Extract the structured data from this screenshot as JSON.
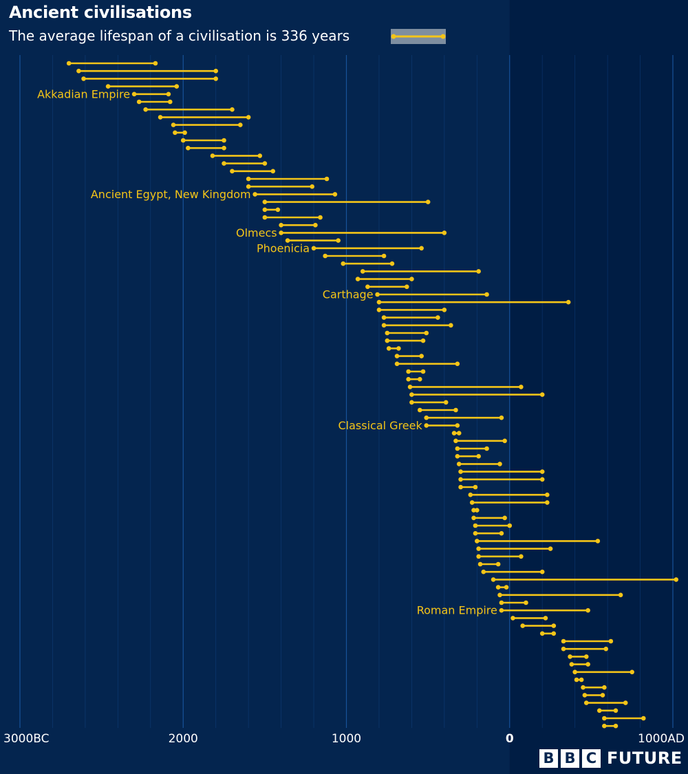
{
  "header": {
    "title": "Ancient civilisations",
    "subtitle": "The average lifespan of a civilisation is 336 years"
  },
  "logo": {
    "letters": [
      "B",
      "B",
      "C"
    ],
    "word": "FUTURE"
  },
  "colors": {
    "background": "#04254f",
    "shaded_region": "#001d44",
    "line": "#f5c518",
    "grid": "#1b5aa6",
    "label": "#f5c518",
    "tick": "#ffffff",
    "legend_swatch": "#7e8ea0"
  },
  "chart_data": {
    "type": "dumbbell",
    "title": "Ancient civilisations",
    "subtitle": "The average lifespan of a civilisation is 336 years",
    "x_axis": {
      "min": -3000,
      "max": 1000,
      "ticks": [
        {
          "value": -3000,
          "label": "3000BC"
        },
        {
          "value": -2000,
          "label": "2000"
        },
        {
          "value": -1000,
          "label": "1000"
        },
        {
          "value": 0,
          "label": "0"
        },
        {
          "value": 1000,
          "label": "1000AD"
        }
      ],
      "minor_gridlines_every": 200
    },
    "shaded_region": [
      0,
      1000
    ],
    "legend": {
      "placement": "top",
      "average_lifespan": 336
    },
    "civilisations": [
      {
        "start": -2700,
        "end": -2170
      },
      {
        "start": -2640,
        "end": -1800
      },
      {
        "start": -2610,
        "end": -1800
      },
      {
        "start": -2460,
        "end": -2040
      },
      {
        "start": -2300,
        "end": -2090,
        "name": "Akkadian Empire"
      },
      {
        "start": -2270,
        "end": -2080
      },
      {
        "start": -2230,
        "end": -1700
      },
      {
        "start": -2140,
        "end": -1600
      },
      {
        "start": -2060,
        "end": -1650
      },
      {
        "start": -2050,
        "end": -1990
      },
      {
        "start": -2000,
        "end": -1750
      },
      {
        "start": -1970,
        "end": -1750
      },
      {
        "start": -1820,
        "end": -1530
      },
      {
        "start": -1750,
        "end": -1500
      },
      {
        "start": -1700,
        "end": -1450
      },
      {
        "start": -1600,
        "end": -1120
      },
      {
        "start": -1600,
        "end": -1210
      },
      {
        "start": -1560,
        "end": -1070,
        "name": "Ancient Egypt, New Kingdom"
      },
      {
        "start": -1500,
        "end": -500
      },
      {
        "start": -1500,
        "end": -1420
      },
      {
        "start": -1500,
        "end": -1160
      },
      {
        "start": -1400,
        "end": -1190
      },
      {
        "start": -1400,
        "end": -400,
        "name": "Olmecs"
      },
      {
        "start": -1360,
        "end": -1050
      },
      {
        "start": -1200,
        "end": -540,
        "name": "Phoenicia"
      },
      {
        "start": -1130,
        "end": -770
      },
      {
        "start": -1020,
        "end": -720
      },
      {
        "start": -900,
        "end": -190
      },
      {
        "start": -930,
        "end": -600
      },
      {
        "start": -870,
        "end": -630
      },
      {
        "start": -810,
        "end": -140,
        "name": "Carthage"
      },
      {
        "start": -800,
        "end": 360
      },
      {
        "start": -800,
        "end": -400
      },
      {
        "start": -770,
        "end": -440
      },
      {
        "start": -770,
        "end": -360
      },
      {
        "start": -750,
        "end": -510
      },
      {
        "start": -750,
        "end": -530
      },
      {
        "start": -740,
        "end": -680
      },
      {
        "start": -690,
        "end": -540
      },
      {
        "start": -690,
        "end": -320
      },
      {
        "start": -620,
        "end": -530
      },
      {
        "start": -620,
        "end": -550
      },
      {
        "start": -610,
        "end": 70
      },
      {
        "start": -600,
        "end": 200
      },
      {
        "start": -600,
        "end": -390
      },
      {
        "start": -550,
        "end": -330
      },
      {
        "start": -510,
        "end": -50
      },
      {
        "start": -510,
        "end": -320,
        "name": "Classical Greek"
      },
      {
        "start": -340,
        "end": -310
      },
      {
        "start": -330,
        "end": -30
      },
      {
        "start": -320,
        "end": -140
      },
      {
        "start": -320,
        "end": -190
      },
      {
        "start": -310,
        "end": -60
      },
      {
        "start": -300,
        "end": 200
      },
      {
        "start": -300,
        "end": 200
      },
      {
        "start": -300,
        "end": -210
      },
      {
        "start": -240,
        "end": 230
      },
      {
        "start": -230,
        "end": 230
      },
      {
        "start": -220,
        "end": -200
      },
      {
        "start": -220,
        "end": -30
      },
      {
        "start": -210,
        "end": 0
      },
      {
        "start": -210,
        "end": -50
      },
      {
        "start": -200,
        "end": 540
      },
      {
        "start": -190,
        "end": 250
      },
      {
        "start": -190,
        "end": 70
      },
      {
        "start": -180,
        "end": -70
      },
      {
        "start": -160,
        "end": 200
      },
      {
        "start": -100,
        "end": 1020
      },
      {
        "start": -70,
        "end": -20
      },
      {
        "start": -60,
        "end": 680
      },
      {
        "start": -50,
        "end": 100
      },
      {
        "start": -50,
        "end": 480,
        "name": "Roman Empire"
      },
      {
        "start": 20,
        "end": 220
      },
      {
        "start": 80,
        "end": 270
      },
      {
        "start": 200,
        "end": 270
      },
      {
        "start": 330,
        "end": 620
      },
      {
        "start": 330,
        "end": 590
      },
      {
        "start": 370,
        "end": 470
      },
      {
        "start": 380,
        "end": 480
      },
      {
        "start": 400,
        "end": 750
      },
      {
        "start": 410,
        "end": 440
      },
      {
        "start": 450,
        "end": 580
      },
      {
        "start": 460,
        "end": 570
      },
      {
        "start": 470,
        "end": 710
      },
      {
        "start": 550,
        "end": 650
      },
      {
        "start": 580,
        "end": 820
      },
      {
        "start": 580,
        "end": 650
      }
    ]
  }
}
